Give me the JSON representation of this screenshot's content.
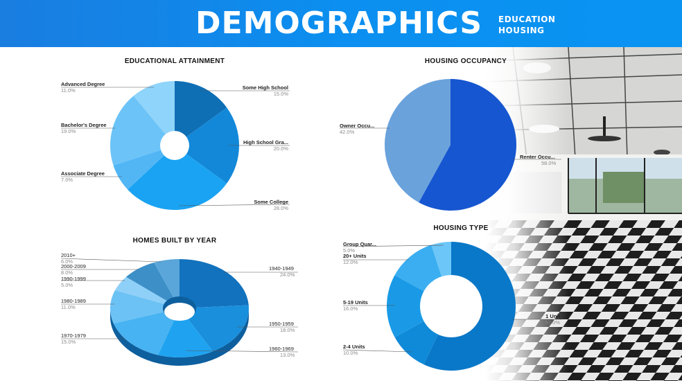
{
  "header": {
    "title": "DEMOGRAPHICS",
    "subtitles": [
      "EDUCATION",
      "HOUSING"
    ]
  },
  "chart_data": [
    {
      "type": "pie",
      "donut": true,
      "title": "EDUCATIONAL ATTAINMENT",
      "slices": [
        {
          "label": "Some High School",
          "pct": "15.0%",
          "value": 15.0,
          "color": "#0f6fb5"
        },
        {
          "label": "High School Gra...",
          "pct": "20.0%",
          "value": 20.0,
          "color": "#1388d8"
        },
        {
          "label": "Some College",
          "pct": "28.0%",
          "value": 28.0,
          "color": "#1aa3f2"
        },
        {
          "label": "Associate Degree",
          "pct": "7.0%",
          "value": 7.0,
          "color": "#52b6f5"
        },
        {
          "label": "Bachelor's Degree",
          "pct": "19.0%",
          "value": 19.0,
          "color": "#6cc3f7"
        },
        {
          "label": "Advanced Degree",
          "pct": "11.0%",
          "value": 11.0,
          "color": "#8fd4fa"
        }
      ]
    },
    {
      "type": "pie",
      "title": "HOUSING OCCUPANCY",
      "slices": [
        {
          "label": "Renter Occu...",
          "pct": "58.0%",
          "value": 58.0,
          "color": "#1656d0"
        },
        {
          "label": "Owner Occu...",
          "pct": "42.0%",
          "value": 42.0,
          "color": "#6aa2dc"
        }
      ]
    },
    {
      "type": "pie",
      "donut": true,
      "style": "3d",
      "title": "HOMES BUILT BY YEAR",
      "slices": [
        {
          "label": "1940-1949",
          "pct": "24.0%",
          "value": 24.0,
          "color": "#1272bd"
        },
        {
          "label": "1950-1959",
          "pct": "18.0%",
          "value": 18.0,
          "color": "#1a8fdc"
        },
        {
          "label": "1960-1969",
          "pct": "13.0%",
          "value": 13.0,
          "color": "#1fa3f0"
        },
        {
          "label": "1970-1979",
          "pct": "15.0%",
          "value": 15.0,
          "color": "#48b3f2"
        },
        {
          "label": "1980-1989",
          "pct": "11.0%",
          "value": 11.0,
          "color": "#6cc2f5"
        },
        {
          "label": "1990-1999",
          "pct": "5.0%",
          "value": 5.0,
          "color": "#8fd0f8"
        },
        {
          "label": "2000-2009",
          "pct": "8.0%",
          "value": 8.0,
          "color": "#3d8fc8"
        },
        {
          "label": "2010+",
          "pct": "6.0%",
          "value": 6.0,
          "color": "#5aa6da"
        }
      ]
    },
    {
      "type": "pie",
      "donut": true,
      "title": "HOUSING TYPE",
      "slices": [
        {
          "label": "1 Unit",
          "pct": "57.0%",
          "value": 57.0,
          "color": "#0a78c8"
        },
        {
          "label": "2-4 Units",
          "pct": "10.0%",
          "value": 10.0,
          "color": "#0f8ad8"
        },
        {
          "label": "5-19 Units",
          "pct": "16.0%",
          "value": 16.0,
          "color": "#1a9ae6"
        },
        {
          "label": "20+ Units",
          "pct": "12.0%",
          "value": 12.0,
          "color": "#3aaef0"
        },
        {
          "label": "Group Quar...",
          "pct": "5.0%",
          "value": 5.0,
          "color": "#6cc6f8"
        }
      ]
    }
  ]
}
